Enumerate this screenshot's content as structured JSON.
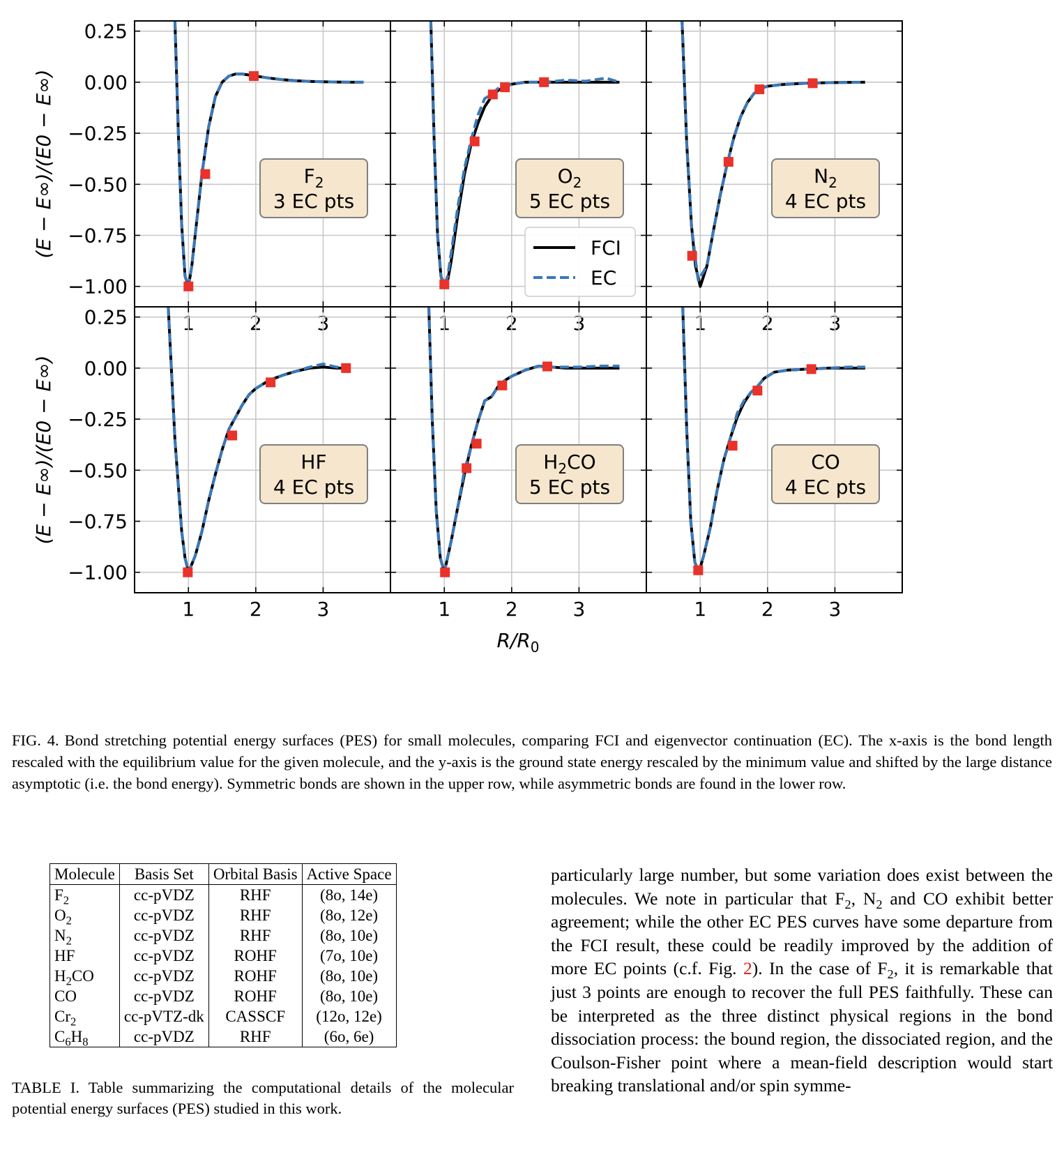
{
  "figure": {
    "x_axis_label": "R/R",
    "x_axis_label_sub": "0",
    "y_axis_label": "(E − E∞)/(E0 − E∞)",
    "legend": {
      "fci": "FCI",
      "ec": "EC"
    },
    "colors": {
      "fci": "#000000",
      "ec": "#3b78b8",
      "marker": "#e8322a",
      "box_fill": "#f5e6cd",
      "box_edge": "#7f7f7f",
      "grid": "#c8c8c8"
    }
  },
  "chart_data": [
    {
      "type": "line",
      "title": "",
      "xlabel": "",
      "ylabel": "(E − E∞)/(E0 − E∞)",
      "xlim": [
        0.2,
        4.0
      ],
      "ylim": [
        -1.1,
        0.3
      ],
      "x_ticks": [
        "1",
        "2",
        "3"
      ],
      "y_ticks": [
        "0.25",
        "0.00",
        "−0.25",
        "−0.50",
        "−0.75",
        "−1.00"
      ],
      "grid": true,
      "annotation": {
        "molecule": "F",
        "molecule_sub": "2",
        "molecule_suffix": "",
        "points_text": "3 EC pts"
      },
      "series": [
        {
          "name": "FCI",
          "x": [
            0.8,
            0.85,
            0.9,
            0.95,
            1.0,
            1.05,
            1.1,
            1.2,
            1.3,
            1.4,
            1.5,
            1.6,
            1.7,
            1.8,
            1.9,
            2.0,
            2.2,
            2.4,
            2.6,
            2.8,
            3.0,
            3.2,
            3.4,
            3.6
          ],
          "y": [
            0.3,
            -0.25,
            -0.7,
            -0.95,
            -1.0,
            -0.9,
            -0.75,
            -0.45,
            -0.22,
            -0.07,
            0.0,
            0.03,
            0.04,
            0.04,
            0.035,
            0.03,
            0.02,
            0.012,
            0.007,
            0.004,
            0.002,
            0.001,
            0.0,
            0.0
          ]
        },
        {
          "name": "EC",
          "x": [
            0.8,
            0.85,
            0.9,
            0.95,
            1.0,
            1.05,
            1.1,
            1.2,
            1.3,
            1.4,
            1.5,
            1.6,
            1.7,
            1.8,
            1.9,
            2.0,
            2.2,
            2.4,
            2.6,
            2.8,
            3.0,
            3.2,
            3.4,
            3.6
          ],
          "y": [
            0.3,
            -0.25,
            -0.7,
            -0.95,
            -1.0,
            -0.9,
            -0.75,
            -0.45,
            -0.22,
            -0.07,
            0.0,
            0.03,
            0.04,
            0.04,
            0.035,
            0.03,
            0.02,
            0.012,
            0.007,
            0.004,
            0.002,
            0.001,
            0.0,
            0.0
          ]
        },
        {
          "name": "EC points",
          "x": [
            1.0,
            1.25,
            1.97
          ],
          "y": [
            -1.0,
            -0.45,
            0.03
          ]
        }
      ]
    },
    {
      "type": "line",
      "title": "",
      "xlabel": "",
      "ylabel": "",
      "xlim": [
        0.2,
        4.0
      ],
      "ylim": [
        -1.1,
        0.3
      ],
      "x_ticks": [
        "1",
        "2",
        "3"
      ],
      "y_ticks": [],
      "grid": true,
      "annotation": {
        "molecule": "O",
        "molecule_sub": "2",
        "molecule_suffix": "",
        "points_text": "5 EC pts"
      },
      "legend_position": "lower-right",
      "series": [
        {
          "name": "FCI",
          "x": [
            0.8,
            0.85,
            0.9,
            0.95,
            1.0,
            1.05,
            1.1,
            1.2,
            1.3,
            1.4,
            1.5,
            1.6,
            1.7,
            1.8,
            1.9,
            2.0,
            2.2,
            2.5,
            2.8,
            3.1,
            3.4,
            3.6
          ],
          "y": [
            0.3,
            -0.3,
            -0.75,
            -0.95,
            -1.0,
            -0.97,
            -0.88,
            -0.65,
            -0.45,
            -0.3,
            -0.2,
            -0.12,
            -0.07,
            -0.04,
            -0.02,
            -0.01,
            0.0,
            0.0,
            0.0,
            0.0,
            0.0,
            0.0
          ]
        },
        {
          "name": "EC",
          "x": [
            0.8,
            0.85,
            0.9,
            0.95,
            1.0,
            1.05,
            1.1,
            1.2,
            1.3,
            1.4,
            1.5,
            1.6,
            1.7,
            1.8,
            1.9,
            2.0,
            2.2,
            2.5,
            2.8,
            3.1,
            3.4,
            3.6
          ],
          "y": [
            0.3,
            -0.3,
            -0.75,
            -0.95,
            -0.99,
            -0.95,
            -0.84,
            -0.61,
            -0.42,
            -0.28,
            -0.16,
            -0.08,
            -0.06,
            -0.03,
            -0.02,
            -0.01,
            0.0,
            0.0,
            0.01,
            0.005,
            0.02,
            0.0
          ]
        },
        {
          "name": "EC points",
          "x": [
            1.0,
            1.45,
            1.72,
            1.9,
            2.48
          ],
          "y": [
            -0.99,
            -0.29,
            -0.06,
            -0.025,
            0.0
          ]
        }
      ]
    },
    {
      "type": "line",
      "title": "",
      "xlabel": "",
      "ylabel": "",
      "xlim": [
        0.2,
        4.0
      ],
      "ylim": [
        -1.1,
        0.3
      ],
      "x_ticks": [
        "1",
        "2",
        "3"
      ],
      "y_ticks": [],
      "grid": true,
      "annotation": {
        "molecule": "N",
        "molecule_sub": "2",
        "molecule_suffix": "",
        "points_text": "4 EC pts"
      },
      "series": [
        {
          "name": "FCI",
          "x": [
            0.73,
            0.8,
            0.87,
            0.93,
            1.0,
            1.1,
            1.2,
            1.3,
            1.4,
            1.5,
            1.6,
            1.7,
            1.8,
            1.9,
            2.0,
            2.2,
            2.4,
            2.6,
            2.8,
            3.0,
            3.2,
            3.45
          ],
          "y": [
            0.3,
            -0.3,
            -0.7,
            -0.9,
            -1.0,
            -0.9,
            -0.72,
            -0.55,
            -0.4,
            -0.27,
            -0.17,
            -0.1,
            -0.055,
            -0.03,
            -0.02,
            -0.012,
            -0.008,
            -0.005,
            -0.003,
            -0.002,
            -0.001,
            0.0
          ]
        },
        {
          "name": "EC",
          "x": [
            0.73,
            0.8,
            0.87,
            0.93,
            0.97,
            1.1,
            1.2,
            1.3,
            1.4,
            1.5,
            1.6,
            1.7,
            1.8,
            1.9,
            2.0,
            2.2,
            2.4,
            2.6,
            2.8,
            3.0,
            3.2,
            3.45
          ],
          "y": [
            0.3,
            -0.3,
            -0.7,
            -0.87,
            -0.97,
            -0.9,
            -0.72,
            -0.55,
            -0.4,
            -0.27,
            -0.17,
            -0.1,
            -0.055,
            -0.03,
            -0.02,
            -0.012,
            -0.008,
            -0.005,
            -0.003,
            -0.002,
            -0.001,
            0.0
          ]
        },
        {
          "name": "EC points",
          "x": [
            0.88,
            1.42,
            1.88,
            2.67
          ],
          "y": [
            -0.85,
            -0.39,
            -0.035,
            -0.005
          ]
        }
      ]
    },
    {
      "type": "line",
      "title": "",
      "xlabel": "",
      "ylabel": "(E − E∞)/(E0 − E∞)",
      "xlim": [
        0.2,
        4.0
      ],
      "ylim": [
        -1.1,
        0.3
      ],
      "x_ticks": [
        "1",
        "2",
        "3"
      ],
      "y_ticks": [
        "0.25",
        "0.00",
        "−0.25",
        "−0.50",
        "−0.75",
        "−1.00"
      ],
      "grid": true,
      "annotation": {
        "molecule": "HF",
        "molecule_sub": "",
        "molecule_suffix": "",
        "points_text": "4 EC pts"
      },
      "series": [
        {
          "name": "FCI",
          "x": [
            0.7,
            0.8,
            0.9,
            0.95,
            1.0,
            1.1,
            1.2,
            1.3,
            1.4,
            1.5,
            1.6,
            1.7,
            1.8,
            1.9,
            2.0,
            2.2,
            2.4,
            2.6,
            2.8,
            3.0,
            3.2,
            3.35
          ],
          "y": [
            0.3,
            -0.35,
            -0.8,
            -0.93,
            -1.0,
            -0.92,
            -0.8,
            -0.65,
            -0.52,
            -0.4,
            -0.3,
            -0.24,
            -0.18,
            -0.13,
            -0.1,
            -0.06,
            -0.035,
            -0.015,
            0.0,
            0.005,
            0.0,
            0.0
          ]
        },
        {
          "name": "EC",
          "x": [
            0.7,
            0.8,
            0.9,
            0.95,
            1.0,
            1.1,
            1.2,
            1.3,
            1.4,
            1.5,
            1.6,
            1.7,
            1.8,
            1.9,
            2.0,
            2.2,
            2.4,
            2.6,
            2.8,
            3.0,
            3.2,
            3.35
          ],
          "y": [
            0.3,
            -0.35,
            -0.8,
            -0.93,
            -1.0,
            -0.92,
            -0.8,
            -0.65,
            -0.52,
            -0.4,
            -0.3,
            -0.24,
            -0.18,
            -0.13,
            -0.1,
            -0.06,
            -0.035,
            -0.015,
            0.005,
            0.02,
            0.005,
            0.0
          ]
        },
        {
          "name": "EC points",
          "x": [
            0.99,
            1.65,
            2.22,
            3.34
          ],
          "y": [
            -1.0,
            -0.33,
            -0.07,
            0.0
          ]
        }
      ]
    },
    {
      "type": "line",
      "title": "",
      "xlabel": "",
      "ylabel": "",
      "xlim": [
        0.2,
        4.0
      ],
      "ylim": [
        -1.1,
        0.3
      ],
      "x_ticks": [
        "1",
        "2",
        "3"
      ],
      "y_ticks": [],
      "grid": true,
      "annotation": {
        "molecule": "H",
        "molecule_sub": "2",
        "molecule_suffix": "CO",
        "points_text": "5 EC pts"
      },
      "series": [
        {
          "name": "FCI",
          "x": [
            0.77,
            0.82,
            0.88,
            0.94,
            1.0,
            1.1,
            1.2,
            1.3,
            1.4,
            1.5,
            1.6,
            1.7,
            1.8,
            1.9,
            2.0,
            2.2,
            2.4,
            2.6,
            2.8,
            3.0,
            3.3,
            3.6
          ],
          "y": [
            0.3,
            -0.25,
            -0.7,
            -0.93,
            -1.0,
            -0.85,
            -0.68,
            -0.52,
            -0.38,
            -0.26,
            -0.16,
            -0.14,
            -0.09,
            -0.06,
            -0.04,
            -0.01,
            0.01,
            0.005,
            0.0,
            0.0,
            0.0,
            0.0
          ]
        },
        {
          "name": "EC",
          "x": [
            0.77,
            0.82,
            0.88,
            0.94,
            1.0,
            1.1,
            1.2,
            1.3,
            1.4,
            1.5,
            1.6,
            1.7,
            1.8,
            1.9,
            2.0,
            2.2,
            2.4,
            2.6,
            2.8,
            3.0,
            3.3,
            3.6
          ],
          "y": [
            0.3,
            -0.25,
            -0.7,
            -0.93,
            -1.0,
            -0.85,
            -0.68,
            -0.5,
            -0.38,
            -0.26,
            -0.16,
            -0.14,
            -0.09,
            -0.06,
            -0.04,
            -0.01,
            0.01,
            0.005,
            0.005,
            0.005,
            0.01,
            0.01
          ]
        },
        {
          "name": "EC points",
          "x": [
            1.01,
            1.33,
            1.48,
            1.86,
            2.53
          ],
          "y": [
            -1.0,
            -0.49,
            -0.37,
            -0.085,
            0.008
          ]
        }
      ]
    },
    {
      "type": "line",
      "title": "",
      "xlabel": "",
      "ylabel": "",
      "xlim": [
        0.2,
        4.0
      ],
      "ylim": [
        -1.1,
        0.3
      ],
      "x_ticks": [
        "1",
        "2",
        "3"
      ],
      "y_ticks": [],
      "grid": true,
      "annotation": {
        "molecule": "CO",
        "molecule_sub": "",
        "molecule_suffix": "",
        "points_text": "4 EC pts"
      },
      "series": [
        {
          "name": "FCI",
          "x": [
            0.74,
            0.8,
            0.86,
            0.92,
            0.98,
            1.05,
            1.15,
            1.25,
            1.35,
            1.45,
            1.55,
            1.65,
            1.75,
            1.85,
            1.95,
            2.1,
            2.3,
            2.6,
            2.9,
            3.2,
            3.45
          ],
          "y": [
            0.3,
            -0.3,
            -0.75,
            -0.95,
            -1.0,
            -0.92,
            -0.78,
            -0.6,
            -0.45,
            -0.34,
            -0.24,
            -0.17,
            -0.12,
            -0.09,
            -0.05,
            -0.02,
            -0.01,
            -0.005,
            0.0,
            0.0,
            0.0
          ]
        },
        {
          "name": "EC",
          "x": [
            0.74,
            0.8,
            0.86,
            0.92,
            0.98,
            1.05,
            1.15,
            1.25,
            1.35,
            1.45,
            1.55,
            1.65,
            1.75,
            1.85,
            1.95,
            2.1,
            2.3,
            2.6,
            2.9,
            3.2,
            3.45
          ],
          "y": [
            0.3,
            -0.3,
            -0.75,
            -0.95,
            -1.0,
            -0.92,
            -0.78,
            -0.6,
            -0.45,
            -0.34,
            -0.22,
            -0.16,
            -0.12,
            -0.09,
            -0.05,
            -0.02,
            -0.01,
            -0.005,
            0.0,
            0.005,
            0.005
          ]
        },
        {
          "name": "EC points",
          "x": [
            0.97,
            1.48,
            1.85,
            2.65
          ],
          "y": [
            -0.99,
            -0.38,
            -0.11,
            -0.005
          ]
        }
      ]
    }
  ],
  "caption": {
    "label": "FIG. 4.",
    "text": "Bond stretching potential energy surfaces (PES) for small molecules, comparing FCI and eigenvector continuation (EC). The x-axis is the bond length rescaled with the equilibrium value for the given molecule, and the y-axis is the ground state energy rescaled by the minimum value and shifted by the large distance asymptotic (i.e. the bond energy). Symmetric bonds are shown in the upper row, while asymmetric bonds are found in the lower row."
  },
  "table": {
    "headers": [
      "Molecule",
      "Basis Set",
      "Orbital Basis",
      "Active Space"
    ],
    "rows": [
      {
        "mol_a": "F",
        "mol_sub_a": "2",
        "mol_b": "",
        "mol_sub_b": "",
        "basis": "cc-pVDZ",
        "orbital": "RHF",
        "active": "(8o, 14e)"
      },
      {
        "mol_a": "O",
        "mol_sub_a": "2",
        "mol_b": "",
        "mol_sub_b": "",
        "basis": "cc-pVDZ",
        "orbital": "RHF",
        "active": "(8o, 12e)"
      },
      {
        "mol_a": "N",
        "mol_sub_a": "2",
        "mol_b": "",
        "mol_sub_b": "",
        "basis": "cc-pVDZ",
        "orbital": "RHF",
        "active": "(8o, 10e)"
      },
      {
        "mol_a": "HF",
        "mol_sub_a": "",
        "mol_b": "",
        "mol_sub_b": "",
        "basis": "cc-pVDZ",
        "orbital": "ROHF",
        "active": "(7o, 10e)"
      },
      {
        "mol_a": "H",
        "mol_sub_a": "2",
        "mol_b": "CO",
        "mol_sub_b": "",
        "basis": "cc-pVDZ",
        "orbital": "ROHF",
        "active": "(8o, 10e)"
      },
      {
        "mol_a": "CO",
        "mol_sub_a": "",
        "mol_b": "",
        "mol_sub_b": "",
        "basis": "cc-pVDZ",
        "orbital": "ROHF",
        "active": "(8o, 10e)"
      },
      {
        "mol_a": "Cr",
        "mol_sub_a": "2",
        "mol_b": "",
        "mol_sub_b": "",
        "basis": "cc-pVTZ-dk",
        "orbital": "CASSCF",
        "active": "(12o, 12e)"
      },
      {
        "mol_a": "C",
        "mol_sub_a": "6",
        "mol_b": "H",
        "mol_sub_b": "8",
        "basis": "cc-pVDZ",
        "orbital": "RHF",
        "active": "(6o, 6e)"
      }
    ],
    "caption": "TABLE I. Table summarizing the computational details of the molecular potential energy surfaces (PES) studied in this work."
  },
  "body": {
    "t1": "particularly large number, but some variation does exist between the molecules.  We note in particular that F",
    "s1": "2",
    "t2": ", N",
    "s2": "2",
    "t3": " and CO exhibit better agreement; while the other EC PES curves have some departure from the FCI result, these could be readily improved by the addition of more EC points (c.f. Fig. ",
    "ref": "2",
    "t4": ").  In the case of F",
    "s3": "2",
    "t5": ", it is remarkable that just 3 points are enough to recover the full PES faithfully.  These can be interpreted as the three distinct physical regions in the bond dissociation process: the bound region, the dissociated region, and the Coulson-Fisher point where a mean-field description would start breaking translational and/or spin symme-"
  }
}
